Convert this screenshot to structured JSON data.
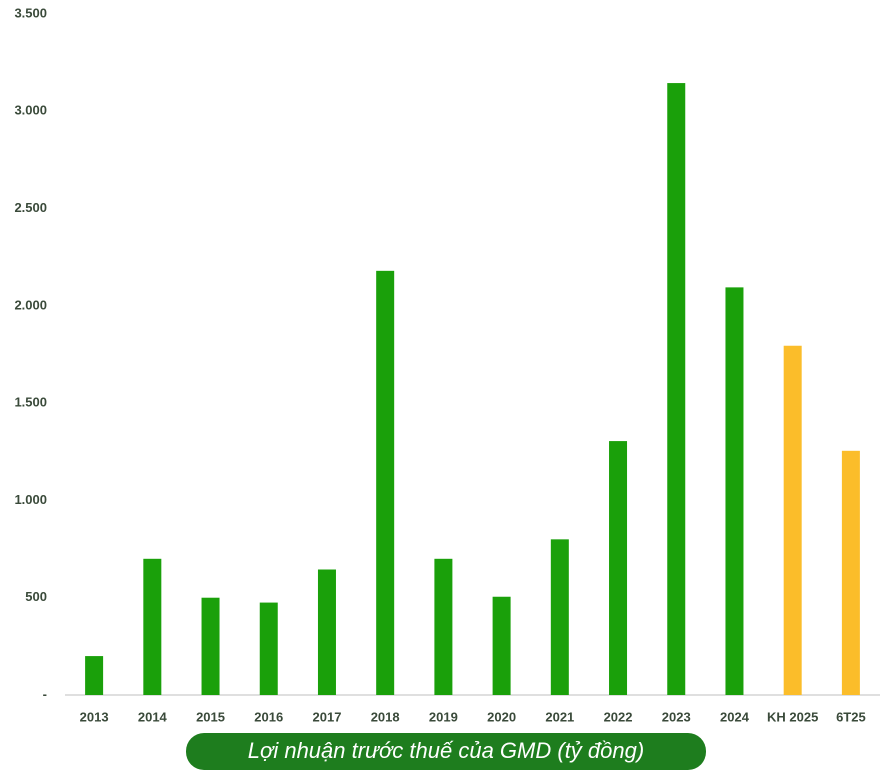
{
  "chart_data": {
    "type": "bar",
    "title": "Lợi nhuận trước thuế của GMD (tỷ đồng)",
    "categories": [
      "2013",
      "2014",
      "2015",
      "2016",
      "2017",
      "2018",
      "2019",
      "2020",
      "2021",
      "2022",
      "2023",
      "2024",
      "KH 2025",
      "6T25"
    ],
    "values": [
      200,
      700,
      500,
      475,
      645,
      2180,
      700,
      505,
      800,
      1305,
      3145,
      2095,
      1795,
      1255
    ],
    "colors": [
      "#1aa00a",
      "#1aa00a",
      "#1aa00a",
      "#1aa00a",
      "#1aa00a",
      "#1aa00a",
      "#1aa00a",
      "#1aa00a",
      "#1aa00a",
      "#1aa00a",
      "#1aa00a",
      "#1aa00a",
      "#fbbd2a",
      "#fbbd2a"
    ],
    "ylim": [
      0,
      3500
    ],
    "yticks": [
      {
        "value": 0,
        "label": "-"
      },
      500,
      {
        "value": 1000,
        "label": "1.000"
      },
      {
        "value": 1500,
        "label": "1.500"
      },
      {
        "value": 2000,
        "label": "2.000"
      },
      {
        "value": 2500,
        "label": "2.500"
      },
      {
        "value": 3000,
        "label": "3.000"
      },
      {
        "value": 3500,
        "label": "3.500"
      }
    ],
    "grid": false
  }
}
